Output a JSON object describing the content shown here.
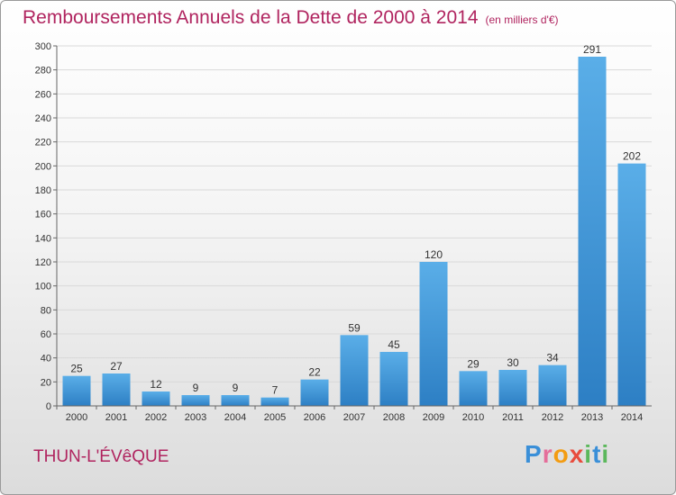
{
  "title": "Remboursements Annuels de la Dette de 2000 à 2014",
  "unit": "(en milliers d'€)",
  "city": "THUN-L'ÉVêQUE",
  "logo": {
    "p": "P",
    "r": "r",
    "o": "o",
    "x": "x",
    "i": "i",
    "t": "t",
    "i2": "i"
  },
  "chart_data": {
    "type": "bar",
    "title": "Remboursements Annuels de la Dette de 2000 à 2014",
    "ylabel": "en milliers d'€",
    "xlabel": "",
    "categories": [
      "2000",
      "2001",
      "2002",
      "2003",
      "2004",
      "2005",
      "2006",
      "2007",
      "2008",
      "2009",
      "2010",
      "2011",
      "2012",
      "2013",
      "2014"
    ],
    "values": [
      25,
      27,
      12,
      9,
      9,
      7,
      22,
      59,
      45,
      120,
      29,
      30,
      34,
      291,
      202
    ],
    "ylim": [
      0,
      300
    ],
    "yticks": [
      0,
      20,
      40,
      60,
      80,
      100,
      120,
      140,
      160,
      180,
      200,
      220,
      240,
      260,
      280,
      300
    ],
    "grid": true,
    "colors": {
      "bar_light": "#5aaee8",
      "bar_dark": "#2d7fc4",
      "grid": "#d9d9d9",
      "axis": "#666666"
    }
  }
}
